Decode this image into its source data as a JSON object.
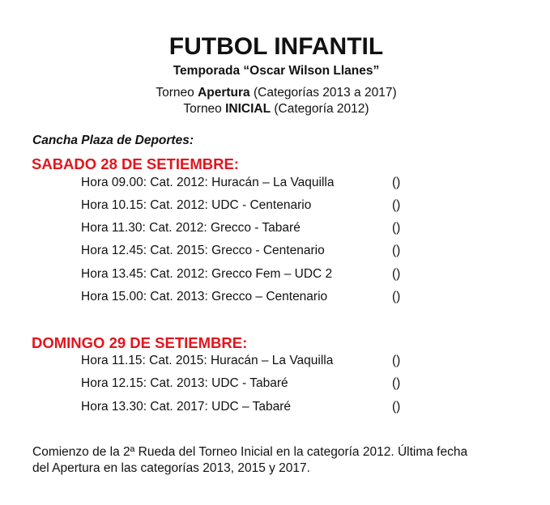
{
  "title": "FUTBOL INFANTIL",
  "subtitle": "Temporada “Oscar Wilson Llanes”",
  "torneos": [
    {
      "pre": "Torneo ",
      "bold": "Apertura",
      "post": " (Categorías 2013 a 2017)"
    },
    {
      "pre": "Torneo ",
      "bold": "INICIAL",
      "post": " (Categoría 2012)"
    }
  ],
  "venue": "Cancha Plaza de Deportes:",
  "accent_color": "#e3141c",
  "days": [
    {
      "heading": "SABADO 28 DE SETIEMBRE:",
      "matches": [
        {
          "text": "Hora 09.00: Cat. 2012: Huracán – La Vaquilla",
          "score": "()"
        },
        {
          "text": "Hora 10.15: Cat. 2012: UDC - Centenario",
          "score": "()"
        },
        {
          "text": "Hora 11.30: Cat. 2012: Grecco - Tabaré",
          "score": "()"
        },
        {
          "text": "Hora 12.45: Cat. 2015: Grecco - Centenario",
          "score": "()"
        },
        {
          "text": "Hora 13.45: Cat. 2012: Grecco Fem – UDC 2",
          "score": "()"
        },
        {
          "text": "Hora 15.00: Cat. 2013: Grecco – Centenario",
          "score": "()"
        }
      ]
    },
    {
      "heading": "DOMINGO 29 DE SETIEMBRE:",
      "matches": [
        {
          "text": "Hora 11.15: Cat. 2015: Huracán – La Vaquilla",
          "score": "()"
        },
        {
          "text": "Hora 12.15: Cat. 2013: UDC - Tabaré",
          "score": "()"
        },
        {
          "text": "Hora 13.30: Cat. 2017: UDC – Tabaré",
          "score": "()"
        }
      ]
    }
  ],
  "footer": [
    "Comienzo de la 2ª Rueda del Torneo Inicial en la categoría 2012. Última fecha",
    "del Apertura en las categorías 2013, 2015 y 2017."
  ]
}
